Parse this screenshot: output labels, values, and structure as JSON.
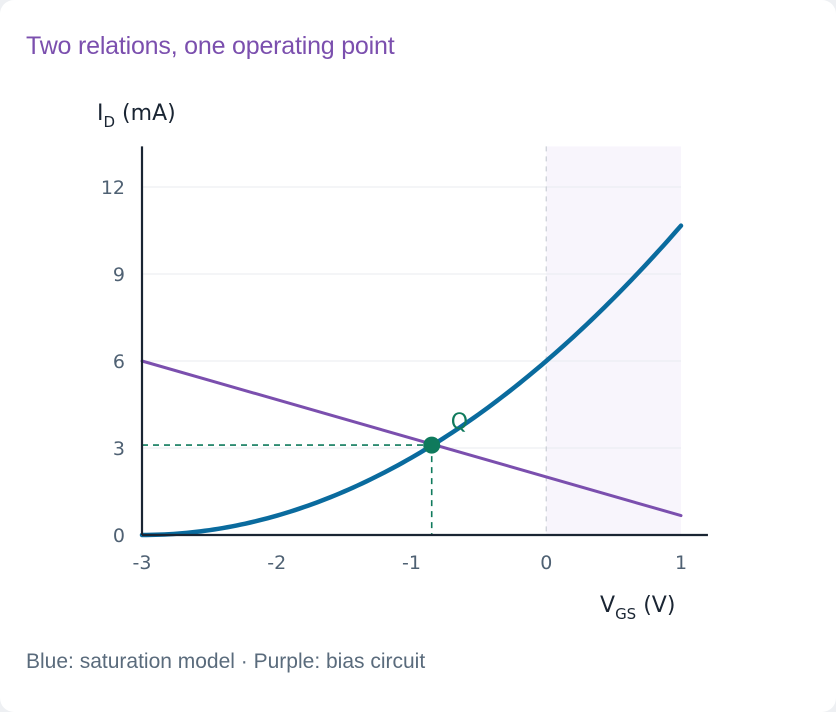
{
  "title": "Two relations, one operating point",
  "caption": "Blue: saturation model · Purple: bias circuit",
  "colors": {
    "title": "#7b4fae",
    "saturation": "#0a6b9e",
    "bias": "#7b4fae",
    "operating_point": "#0f7a5c",
    "axis": "#1a2533",
    "grid": "#e8ebef",
    "shade": "#f8f5fc"
  },
  "chart_data": {
    "type": "line",
    "xlabel": {
      "main": "V",
      "sub": "GS",
      "unit": " (V)"
    },
    "ylabel": {
      "main": "I",
      "sub": "D",
      "unit": " (mA)"
    },
    "xlim": [
      -3,
      1.2
    ],
    "ylim": [
      0,
      13.4
    ],
    "x_ticks": [
      -3,
      -2,
      -1,
      0,
      1
    ],
    "y_ticks": [
      0,
      3,
      6,
      9,
      12
    ],
    "grid": "horizontal",
    "shaded_region": {
      "x_from": 0,
      "x_to": 1
    },
    "reference_line_x": 0,
    "series": [
      {
        "role": "saturation",
        "model": "square-law",
        "x_range": [
          -3,
          1
        ],
        "params": {
          "IDSS": 6,
          "VP": -3
        }
      },
      {
        "role": "bias",
        "model": "linear",
        "points": [
          [
            -3,
            6
          ],
          [
            1,
            0.67
          ]
        ]
      }
    ],
    "operating_point": {
      "label": "Q",
      "x": -0.85,
      "y": 3.1
    }
  }
}
